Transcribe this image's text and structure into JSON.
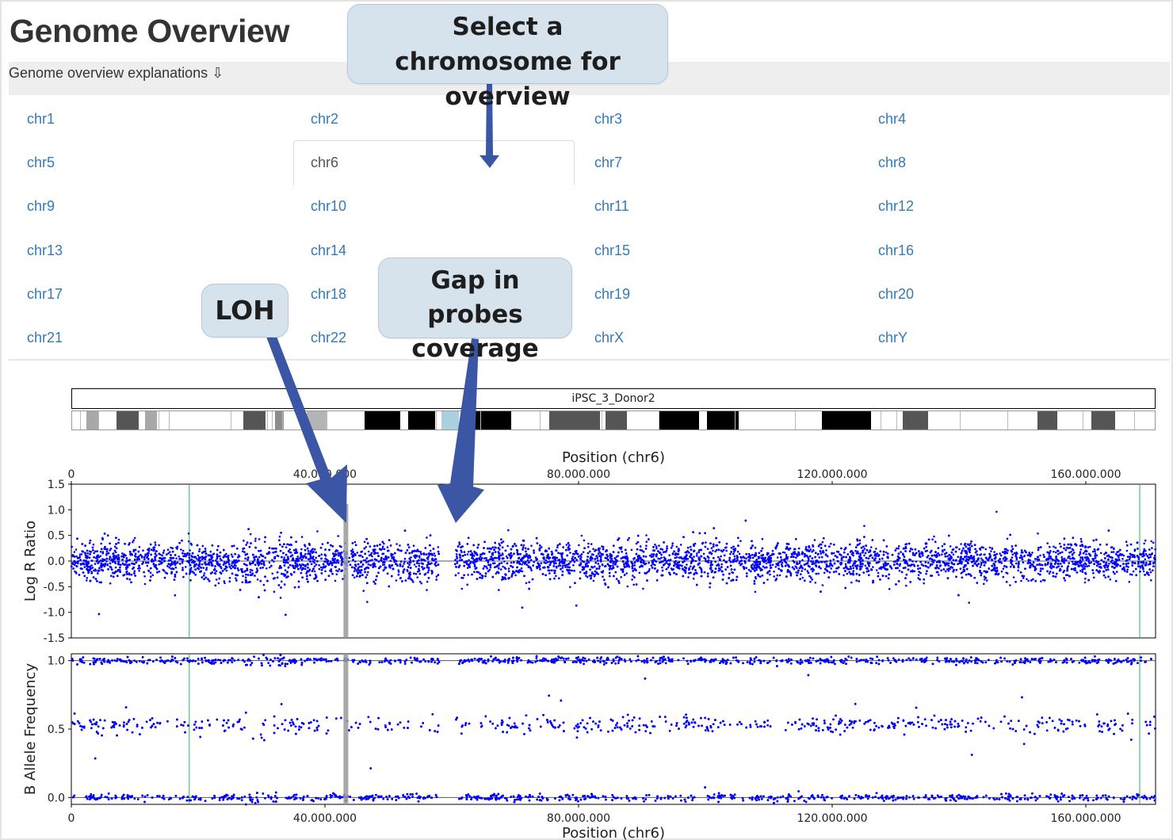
{
  "page": {
    "title": "Genome Overview",
    "explanations_label": "Genome overview explanations ⇩"
  },
  "chromosomes": [
    [
      "chr1",
      "chr2",
      "chr3",
      "chr4"
    ],
    [
      "chr5",
      "chr6",
      "chr7",
      "chr8"
    ],
    [
      "chr9",
      "chr10",
      "chr11",
      "chr12"
    ],
    [
      "chr13",
      "chr14",
      "chr15",
      "chr16"
    ],
    [
      "chr17",
      "chr18",
      "chr19",
      "chr20"
    ],
    [
      "chr21",
      "chr22",
      "chrX",
      "chrY"
    ]
  ],
  "selected_chromosome": "chr6",
  "ideogram": {
    "sample_label": "iPSC_3_Donor2"
  },
  "callouts": {
    "select": "Select a chromosome for overview",
    "loh": "LOH",
    "gap": "Gap in probes coverage"
  },
  "colors": {
    "link": "#337ab7",
    "points": "#0000ff",
    "callout_bg": "#d6e3ed",
    "arrow": "#3a56a5"
  },
  "chart_data": [
    {
      "type": "scatter",
      "ylabel": "Log R Ratio",
      "xlabel_top": "Position (chr6)",
      "xlim": [
        0,
        171000000
      ],
      "ylim": [
        -1.5,
        1.5
      ],
      "x_ticks": [
        "0",
        "40.000.000",
        "80.000.000",
        "120.000.000",
        "160.000.000"
      ],
      "y_ticks": [
        "1.5",
        "1.0",
        "0.5",
        "0.0",
        "-0.5",
        "-1.0",
        "-1.5"
      ],
      "y_tick_values": [
        1.5,
        1.0,
        0.5,
        0.0,
        -0.5,
        -1.0,
        -1.5
      ],
      "center": 0.0,
      "spread": 0.18,
      "gap_x": [
        58000000,
        60500000
      ],
      "loh_x": 43300000
    },
    {
      "type": "scatter",
      "ylabel": "B Allele Frequency",
      "xlabel_bottom": "Position (chr6)",
      "xlim": [
        0,
        171000000
      ],
      "ylim": [
        -0.05,
        1.05
      ],
      "x_ticks": [
        "0",
        "40.000.000",
        "80.000.000",
        "120.000.000",
        "160.000.000"
      ],
      "y_ticks": [
        "1.0",
        "0.5",
        "0.0"
      ],
      "y_tick_values": [
        1.0,
        0.5,
        0.0
      ],
      "bands": [
        0.0,
        0.5,
        1.0
      ],
      "gap_x": [
        58000000,
        60500000
      ],
      "loh_x": 43300000
    }
  ]
}
